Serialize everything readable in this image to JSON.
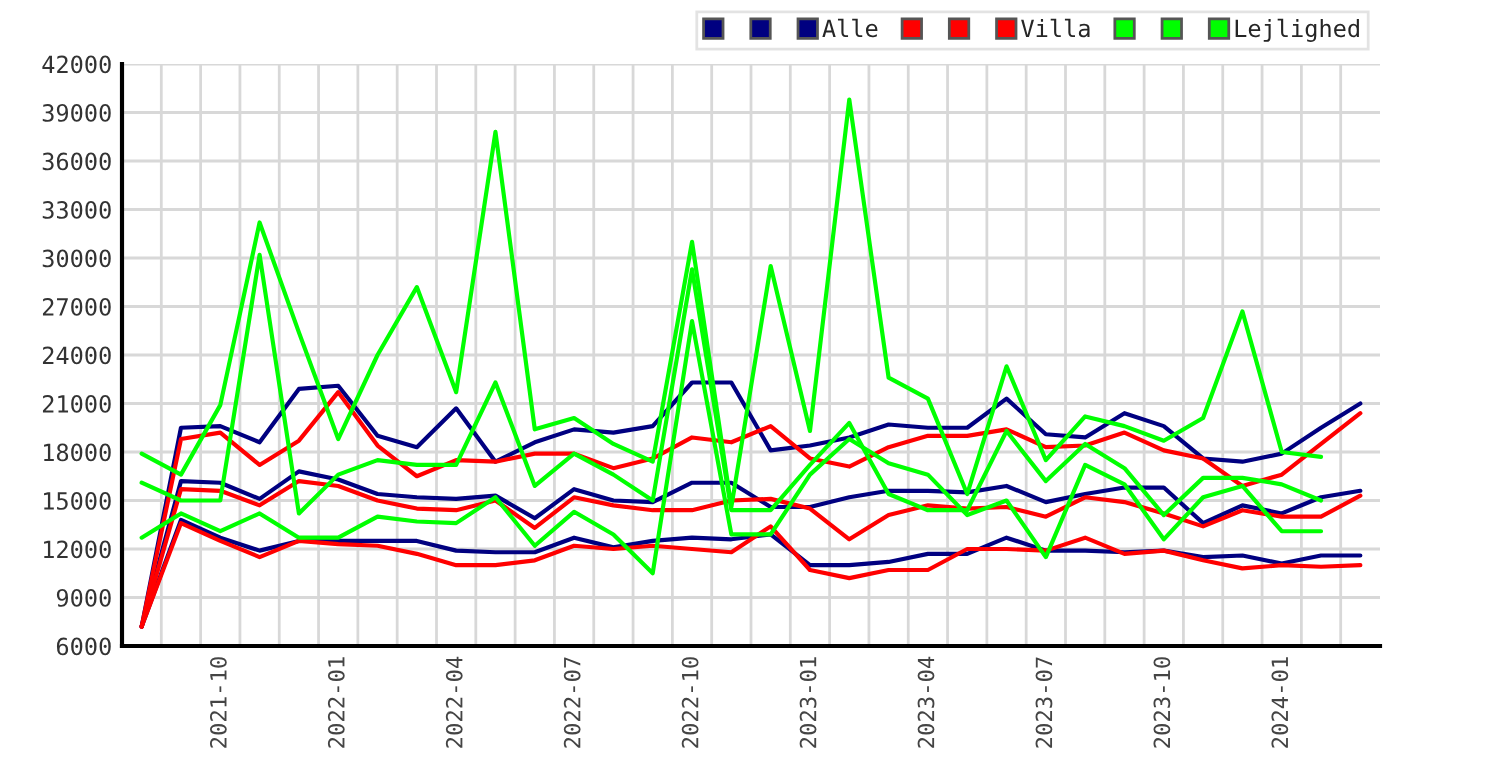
{
  "chart_data": {
    "type": "line",
    "categories": [
      null,
      null,
      "2021-10",
      null,
      null,
      "2022-01",
      null,
      null,
      "2022-04",
      null,
      null,
      "2022-07",
      null,
      null,
      "2022-10",
      null,
      null,
      "2023-01",
      null,
      null,
      "2023-04",
      null,
      null,
      "2023-07",
      null,
      null,
      "2023-10",
      null,
      null,
      "2024-01",
      null,
      null
    ],
    "ylim": [
      6000,
      42000
    ],
    "yticks": [
      6000,
      9000,
      12000,
      15000,
      18000,
      21000,
      24000,
      27000,
      30000,
      33000,
      36000,
      39000,
      42000
    ],
    "grid": true,
    "legend": "top right",
    "marker": "none",
    "line_style": "solid",
    "series": [
      {
        "color": "#000080",
        "values": [
          7200,
          19500,
          19600,
          18600,
          21900,
          22100,
          19000,
          18300,
          20700,
          17400,
          18600,
          19400,
          19200,
          19600,
          22300,
          22300,
          18100,
          18400,
          18900,
          19700,
          19500,
          19500,
          21300,
          19100,
          18900,
          20400,
          19600,
          17600,
          17400,
          17900,
          19500,
          21000
        ]
      },
      {
        "color": "#000080",
        "values": [
          7200,
          16200,
          16100,
          15100,
          16800,
          16300,
          15400,
          15200,
          15100,
          15300,
          13900,
          15700,
          15000,
          14900,
          16100,
          16100,
          14600,
          14600,
          15200,
          15600,
          15600,
          15500,
          15900,
          14900,
          15400,
          15800,
          15800,
          13600,
          14700,
          14200,
          15200,
          15600
        ]
      },
      {
        "name": "Alle",
        "color": "#000080",
        "values": [
          7200,
          13800,
          12700,
          11900,
          12500,
          12500,
          12500,
          12500,
          11900,
          11800,
          11800,
          12700,
          12100,
          12500,
          12700,
          12600,
          12900,
          11000,
          11000,
          11200,
          11700,
          11700,
          12700,
          11900,
          11900,
          11800,
          11900,
          11500,
          11600,
          11100,
          11600,
          11600
        ]
      },
      {
        "color": "#ff0000",
        "values": [
          7200,
          18800,
          19200,
          17200,
          18700,
          21700,
          18400,
          16500,
          17500,
          17400,
          17900,
          17900,
          17000,
          17600,
          18900,
          18600,
          19600,
          17600,
          17100,
          18300,
          19000,
          19000,
          19400,
          18300,
          18400,
          19200,
          18100,
          17600,
          15900,
          16600,
          18500,
          20400
        ]
      },
      {
        "color": "#ff0000",
        "values": [
          7200,
          15700,
          15600,
          14700,
          16200,
          15900,
          15000,
          14500,
          14400,
          15000,
          13300,
          15200,
          14700,
          14400,
          14400,
          15000,
          15100,
          14500,
          12600,
          14100,
          14700,
          14500,
          14600,
          14000,
          15200,
          14900,
          14200,
          13400,
          14400,
          14000,
          14000,
          15300
        ]
      },
      {
        "name": "Villa",
        "color": "#ff0000",
        "values": [
          7200,
          13600,
          12500,
          11500,
          12500,
          12300,
          12200,
          11700,
          11000,
          11000,
          11300,
          12200,
          12000,
          12200,
          12000,
          11800,
          13400,
          10700,
          10200,
          10700,
          10700,
          12000,
          12000,
          11900,
          12700,
          11700,
          11900,
          11300,
          10800,
          11000,
          10900,
          11000
        ]
      },
      {
        "color": "#00ff00",
        "values": [
          17900,
          16600,
          20900,
          32200,
          25400,
          18800,
          24000,
          28200,
          21700,
          37800,
          19400,
          20100,
          18500,
          17400,
          31000,
          14600,
          29500,
          19300,
          39800,
          22600,
          21300,
          15400,
          23300,
          17500,
          20200,
          19600,
          18700,
          20100,
          26700,
          18000,
          17700,
          null
        ]
      },
      {
        "color": "#00ff00",
        "values": [
          16100,
          15000,
          15000,
          30200,
          14200,
          16600,
          17500,
          17200,
          17200,
          22300,
          15900,
          17900,
          16600,
          15000,
          29300,
          14400,
          14400,
          17200,
          19800,
          15400,
          14400,
          14400,
          19300,
          16200,
          18500,
          17000,
          14100,
          16400,
          16400,
          16000,
          15000,
          null
        ]
      },
      {
        "name": "Lejlighed",
        "color": "#00ff00",
        "values": [
          12700,
          14200,
          13100,
          14200,
          12700,
          12700,
          14000,
          13700,
          13600,
          15200,
          12200,
          14300,
          12900,
          10500,
          26100,
          12900,
          12900,
          16600,
          18800,
          17300,
          16600,
          14100,
          15000,
          11500,
          17200,
          16000,
          12600,
          15200,
          15900,
          13100,
          13100,
          null
        ]
      }
    ]
  }
}
